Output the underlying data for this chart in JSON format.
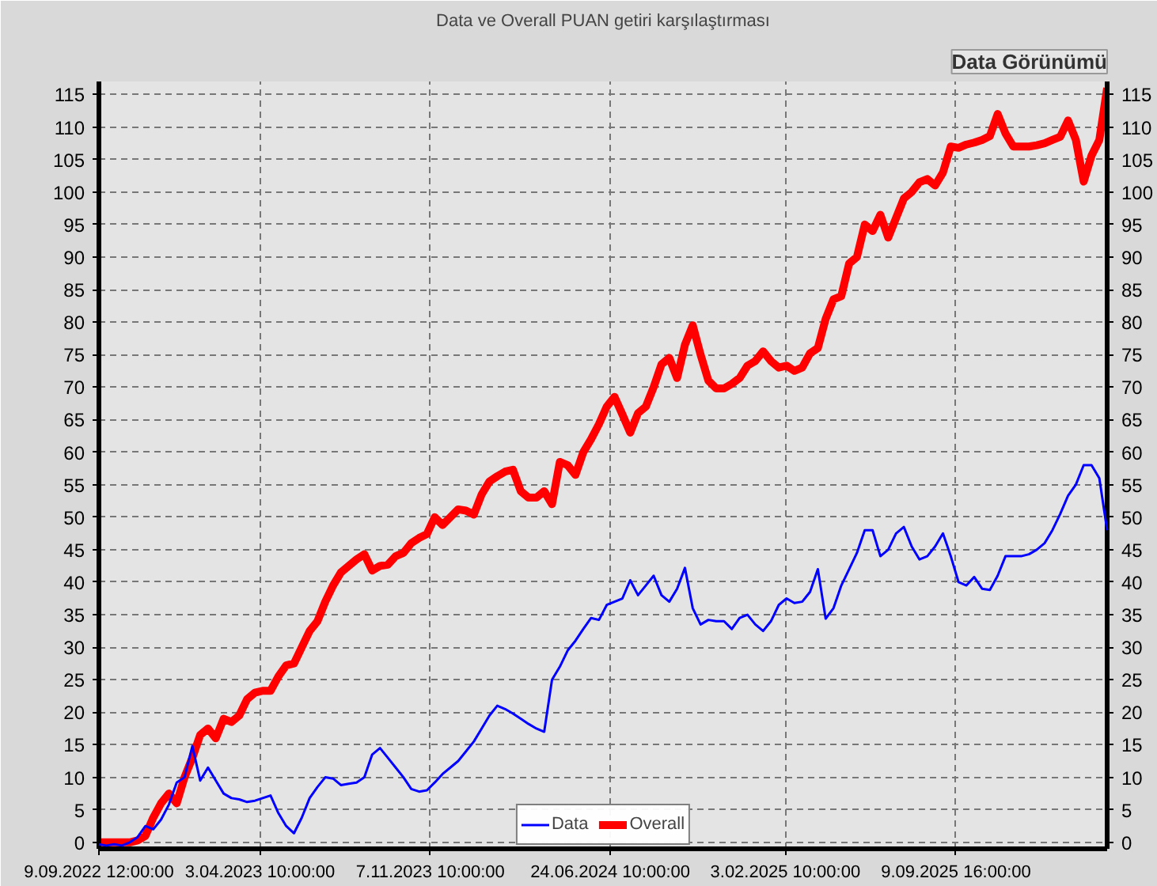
{
  "chart_data": {
    "type": "line",
    "title": "Data ve Overall PUAN getiri karşılaştırması",
    "annotations": [
      "Data Görünümü"
    ],
    "x": [
      "2022-09-09T12:00",
      "2022-09-19",
      "2022-09-29",
      "2022-10-09",
      "2022-10-19",
      "2022-10-29",
      "2022-11-08",
      "2022-11-18",
      "2022-11-28",
      "2022-12-08",
      "2022-12-18",
      "2022-12-28",
      "2023-01-07",
      "2023-01-17",
      "2023-01-27",
      "2023-02-06",
      "2023-02-16",
      "2023-02-26",
      "2023-03-08",
      "2023-03-18",
      "2023-03-28",
      "2023-04-07",
      "2023-04-17",
      "2023-04-27",
      "2023-05-07",
      "2023-05-17",
      "2023-05-27",
      "2023-06-06",
      "2023-06-16",
      "2023-06-26",
      "2023-07-06",
      "2023-07-16",
      "2023-07-26",
      "2023-08-05",
      "2023-08-15",
      "2023-08-25",
      "2023-09-04",
      "2023-09-14",
      "2023-09-24",
      "2023-10-04",
      "2023-10-14",
      "2023-10-24",
      "2023-11-03",
      "2023-11-13",
      "2023-11-23",
      "2023-12-03",
      "2023-12-13",
      "2023-12-23",
      "2024-01-02",
      "2024-01-12",
      "2024-01-22",
      "2024-02-01",
      "2024-02-11",
      "2024-02-21",
      "2024-03-02",
      "2024-03-12",
      "2024-03-22",
      "2024-04-01",
      "2024-04-11",
      "2024-04-21",
      "2024-05-01",
      "2024-05-11",
      "2024-05-21",
      "2024-05-31",
      "2024-06-10",
      "2024-06-20",
      "2024-06-30",
      "2024-07-10",
      "2024-07-20",
      "2024-07-30",
      "2024-08-09",
      "2024-08-19",
      "2024-08-29",
      "2024-09-08",
      "2024-09-18",
      "2024-09-28",
      "2024-10-08",
      "2024-10-18",
      "2024-10-28",
      "2024-11-07",
      "2024-11-17",
      "2024-11-27",
      "2024-12-07",
      "2024-12-17",
      "2024-12-27",
      "2025-01-06",
      "2025-01-16",
      "2025-01-26",
      "2025-02-05",
      "2025-02-15",
      "2025-02-25",
      "2025-03-07",
      "2025-03-17",
      "2025-03-27",
      "2025-04-06",
      "2025-04-16",
      "2025-04-26",
      "2025-05-06",
      "2025-05-16",
      "2025-05-26",
      "2025-06-05",
      "2025-06-15",
      "2025-06-25",
      "2025-07-05",
      "2025-07-15",
      "2025-07-25",
      "2025-08-04",
      "2025-08-14",
      "2025-08-24",
      "2025-09-03",
      "2025-09-13",
      "2025-09-23",
      "2025-10-03",
      "2025-10-13",
      "2025-10-23",
      "2025-11-02",
      "2025-11-12",
      "2025-11-22",
      "2025-12-02",
      "2025-12-12",
      "2025-12-22",
      "2026-01-01",
      "2026-01-11",
      "2026-01-21",
      "2026-01-31",
      "2026-02-10",
      "2026-02-20",
      "2026-03-02",
      "2026-03-12",
      "2026-03-22"
    ],
    "series": [
      {
        "name": "Data",
        "color": "#0000ff",
        "values": [
          -0.3,
          -0.5,
          -0.3,
          -0.5,
          0,
          0.8,
          2.5,
          2,
          3.5,
          5.8,
          9.2,
          10,
          14.8,
          9.5,
          11.5,
          9.5,
          7.5,
          6.8,
          6.6,
          6.2,
          6.4,
          6.8,
          7.2,
          4.5,
          2.5,
          1.4,
          3.8,
          6.8,
          8.5,
          10,
          9.8,
          8.8,
          9,
          9.2,
          10,
          13.5,
          14.5,
          13,
          11.5,
          10,
          8.2,
          7.8,
          8,
          9.2,
          10.5,
          11.5,
          12.5,
          14,
          15.5,
          17.5,
          19.5,
          21,
          20.5,
          19.8,
          19,
          18.2,
          17.5,
          17,
          25,
          27,
          29.5,
          31,
          32.8,
          34.5,
          34.2,
          36.5,
          37,
          37.5,
          40.3,
          38,
          39.5,
          41,
          38,
          37,
          39,
          42.2,
          36,
          33.5,
          34.2,
          34,
          34,
          32.8,
          34.5,
          35,
          33.5,
          32.5,
          34,
          36.5,
          37.5,
          36.8,
          37,
          38.5,
          42,
          34.4,
          36,
          39.5,
          42,
          44.5,
          48,
          48,
          44,
          45,
          47.5,
          48.5,
          45.5,
          43.5,
          44,
          45.5,
          47.5,
          44,
          40,
          39.5,
          40.8,
          39,
          38.8,
          41,
          44,
          44,
          44,
          44.3,
          45,
          46,
          48,
          50.5,
          53.3,
          55,
          58,
          58,
          56,
          48
        ]
      },
      {
        "name": "Overall",
        "color": "#ff0000",
        "values": [
          0,
          0,
          0,
          0,
          0,
          0.3,
          1,
          3.8,
          6,
          7.5,
          6,
          10,
          13,
          16.5,
          17.5,
          16,
          19,
          18.5,
          19.5,
          22,
          23,
          23.3,
          23.3,
          25.5,
          27.2,
          27.5,
          30,
          32.5,
          34,
          37,
          39.5,
          41.5,
          42.5,
          43.5,
          44.3,
          41.8,
          42.5,
          42.7,
          44,
          44.5,
          46,
          46.8,
          47.4,
          50,
          48.8,
          50,
          51.2,
          51,
          50.4,
          53.5,
          55.5,
          56.3,
          57,
          57.3,
          54,
          53,
          53,
          54,
          52,
          58.5,
          58,
          56.5,
          60,
          62,
          64.3,
          67,
          68.5,
          65.8,
          63,
          66,
          67,
          70,
          73.5,
          74.5,
          71.4,
          76.5,
          79.5,
          75,
          71,
          69.8,
          69.8,
          70.5,
          71.4,
          73.3,
          74,
          75.5,
          74,
          73,
          73.3,
          72.5,
          73,
          75.2,
          76,
          80.5,
          83.5,
          84,
          89,
          90,
          95,
          94,
          96.5,
          93,
          96,
          99,
          100,
          101.5,
          102,
          101,
          103,
          107,
          106.8,
          107.3,
          107.6,
          108,
          108.6,
          112,
          109,
          107,
          107,
          107,
          107.2,
          107.5,
          108,
          108.5,
          111,
          108,
          101.6,
          105.6,
          108,
          116
        ]
      }
    ],
    "xlim": [
      "2022-09-09T12:00",
      "2026-03-22"
    ],
    "xticks": [
      {
        "value": "2022-09-09T12:00",
        "label": "9.09.2022 12:00:00"
      },
      {
        "value": "2023-04-03T10:00",
        "label": "3.04.2023 10:00:00"
      },
      {
        "value": "2023-11-07T10:00",
        "label": "7.11.2023 10:00:00"
      },
      {
        "value": "2024-06-24T10:00",
        "label": "24.06.2024 10:00:00"
      },
      {
        "value": "2025-02-03T10:00",
        "label": "3.02.2025 10:00:00"
      },
      {
        "value": "2025-09-09T16:00",
        "label": "9.09.2025 16:00:00"
      }
    ],
    "ylim": [
      -1,
      117
    ],
    "yticks": [
      0,
      5,
      10,
      15,
      20,
      25,
      30,
      35,
      40,
      45,
      50,
      55,
      60,
      65,
      70,
      75,
      80,
      85,
      90,
      95,
      100,
      105,
      110,
      115
    ],
    "y2lim": [
      -1,
      117
    ],
    "y2ticks": [
      0,
      5,
      10,
      15,
      20,
      25,
      30,
      35,
      40,
      45,
      50,
      55,
      60,
      65,
      70,
      75,
      80,
      85,
      90,
      95,
      100,
      105,
      110,
      115
    ],
    "grid": true,
    "legend": "bottom",
    "line_style": "solid",
    "marker": "none"
  }
}
